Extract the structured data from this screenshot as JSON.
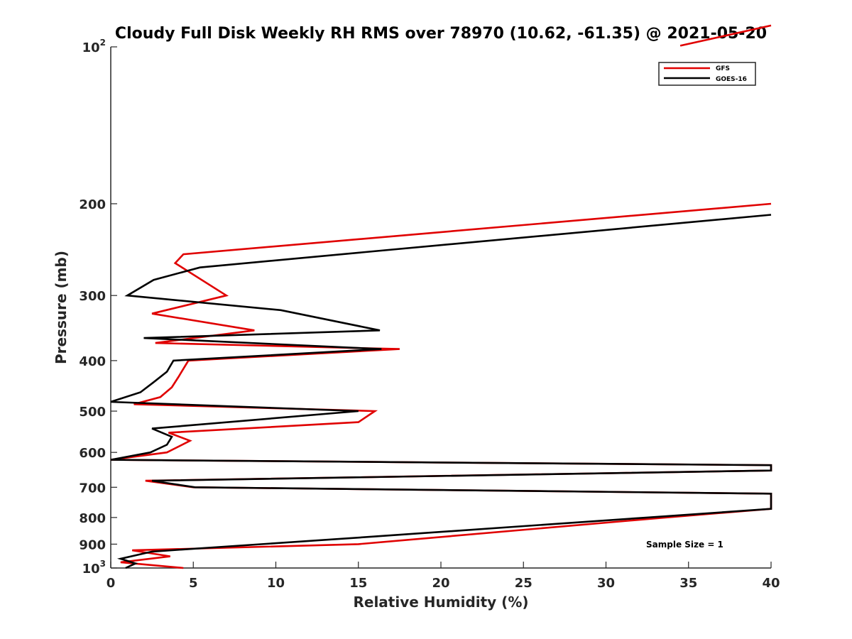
{
  "chart_data": {
    "type": "line",
    "title": "Cloudy Full Disk Weekly RH RMS over 78970 (10.62, -61.35) @ 2021-05-20",
    "xlabel": "Relative Humidity (%)",
    "ylabel": "Pressure (mb)",
    "xlim": [
      0,
      40
    ],
    "ylim": [
      100,
      1000
    ],
    "y_scale": "log",
    "y_reversed": true,
    "x_ticks": [
      "0",
      "5",
      "10",
      "15",
      "20",
      "25",
      "30",
      "35",
      "40"
    ],
    "y_ticks": [
      {
        "value": 100,
        "base": "10",
        "exp": "2"
      },
      {
        "value": 200,
        "base": "200",
        "exp": ""
      },
      {
        "value": 300,
        "base": "300",
        "exp": ""
      },
      {
        "value": 400,
        "base": "400",
        "exp": ""
      },
      {
        "value": 500,
        "base": "500",
        "exp": ""
      },
      {
        "value": 600,
        "base": "600",
        "exp": ""
      },
      {
        "value": 700,
        "base": "700",
        "exp": ""
      },
      {
        "value": 800,
        "base": "800",
        "exp": ""
      },
      {
        "value": 900,
        "base": "900",
        "exp": ""
      },
      {
        "value": 1000,
        "base": "10",
        "exp": "3"
      }
    ],
    "legend_position": "top-right",
    "annotation": "Sample Size = 1",
    "series": [
      {
        "name": "GFS",
        "color": "#e00000",
        "points": [
          [
            4.4,
            1000
          ],
          [
            0.6,
            975
          ],
          [
            3.6,
            950
          ],
          [
            1.3,
            925
          ],
          [
            15,
            900
          ],
          [
            33.6,
            800
          ],
          [
            40,
            770
          ],
          [
            40,
            720
          ],
          [
            5,
            700
          ],
          [
            2.1,
            680
          ],
          [
            40,
            650
          ],
          [
            40,
            635
          ],
          [
            0,
            620
          ],
          [
            3.4,
            600
          ],
          [
            4.8,
            570
          ],
          [
            3.5,
            550
          ],
          [
            15,
            525
          ],
          [
            16,
            500
          ],
          [
            1.4,
            485
          ],
          [
            3.0,
            470
          ],
          [
            3.7,
            450
          ],
          [
            4.1,
            430
          ],
          [
            4.7,
            400
          ],
          [
            17.5,
            380
          ],
          [
            2.7,
            370
          ],
          [
            8.7,
            350
          ],
          [
            2.5,
            325
          ],
          [
            7.0,
            300
          ],
          [
            3.9,
            260
          ],
          [
            4.4,
            250
          ],
          [
            40,
            200
          ]
        ],
        "points_above_axis": [
          [
            34.5,
            99.5
          ],
          [
            40,
            91
          ]
        ]
      },
      {
        "name": "GOES-16",
        "color": "#000000",
        "points": [
          [
            0.9,
            1000
          ],
          [
            1.5,
            980
          ],
          [
            0.6,
            960
          ],
          [
            2.5,
            930
          ],
          [
            16,
            870
          ],
          [
            32.5,
            800
          ],
          [
            40,
            770
          ],
          [
            40,
            720
          ],
          [
            5.1,
            700
          ],
          [
            2.5,
            680
          ],
          [
            40,
            650
          ],
          [
            40,
            635
          ],
          [
            0,
            620
          ],
          [
            2.4,
            600
          ],
          [
            3.4,
            580
          ],
          [
            3.7,
            560
          ],
          [
            2.5,
            540
          ],
          [
            15,
            500
          ],
          [
            0,
            480
          ],
          [
            1.8,
            460
          ],
          [
            2.6,
            440
          ],
          [
            3.4,
            420
          ],
          [
            3.8,
            400
          ],
          [
            16.4,
            380
          ],
          [
            2,
            362
          ],
          [
            16.3,
            350
          ],
          [
            10.3,
            320
          ],
          [
            1.0,
            300
          ],
          [
            2.6,
            280
          ],
          [
            5.4,
            265
          ],
          [
            15.2,
            248
          ],
          [
            40,
            210
          ]
        ]
      }
    ]
  }
}
